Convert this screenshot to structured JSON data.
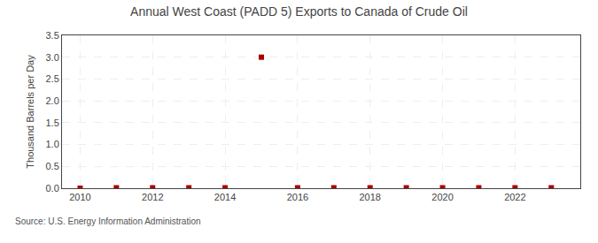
{
  "chart_data": {
    "type": "scatter",
    "title": "Annual West Coast (PADD 5) Exports to Canada of Crude Oil",
    "ylabel": "Thousand Barrels per Day",
    "annotation": "Source: U.S. Energy Information Administration",
    "x": [
      2010,
      2011,
      2012,
      2013,
      2014,
      2015,
      2016,
      2017,
      2018,
      2019,
      2020,
      2021,
      2022,
      2023
    ],
    "values": [
      0.0,
      0.01,
      0.01,
      0.01,
      0.01,
      3.0,
      0.01,
      0.01,
      0.01,
      0.01,
      0.01,
      0.01,
      0.01,
      0.01
    ],
    "color": "#aa0000",
    "marker": "square",
    "xlim": [
      2009.5,
      2023.8
    ],
    "xticks": [
      2010,
      2012,
      2014,
      2016,
      2018,
      2020,
      2022
    ],
    "ylim": [
      0.0,
      3.5
    ],
    "yticks": [
      {
        "value": 0.0,
        "label": "0.0"
      },
      0.5,
      {
        "value": 1.0,
        "label": "1.0"
      },
      1.5,
      {
        "value": 2.0,
        "label": "2.0"
      },
      2.5,
      {
        "value": 3.0,
        "label": "3.0"
      },
      3.5
    ],
    "grid": true
  }
}
